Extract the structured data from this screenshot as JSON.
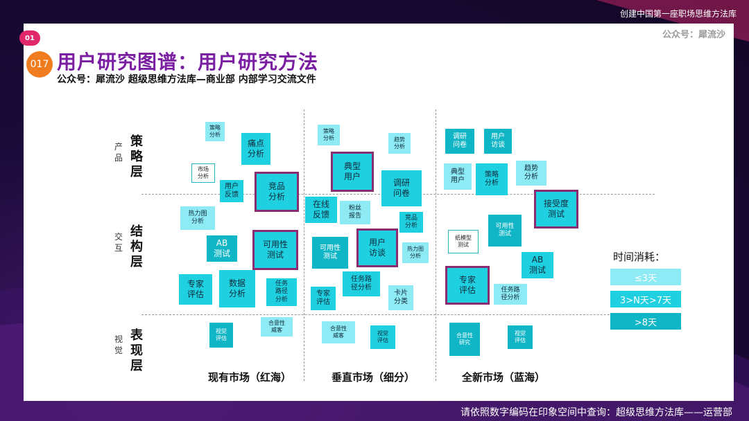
{
  "header": {
    "top_right": "创建中国第一座职场思维方法库",
    "public_account": "公众号：犀流沙"
  },
  "badges": {
    "number": "01",
    "sub": "017"
  },
  "title": "用户研究图谱：用户研究方法",
  "subtitle": "公众号：犀流沙 超级思维方法库—商业部 内部学习交流文件",
  "rows": {
    "strategy": {
      "side": "产品",
      "main": "策略层"
    },
    "structure": {
      "side": "交互",
      "main": "结构层"
    },
    "visual": {
      "side": "视觉",
      "main": "表现层"
    }
  },
  "columns": {
    "existing": "现有市场（红海）",
    "vertical": "垂直市场（细分）",
    "new": "全新市场（蓝海）"
  },
  "methods": {
    "c1_celue": "策略\n分析",
    "c1_tongdian": "痛点\n分析",
    "c1_shichang": "市场\n分析",
    "c1_fankui": "用户\n反馈",
    "c1_jingpin": "竞品\n分析",
    "c1_relitu": "热力图\n分析",
    "c1_ab": "AB\n测试",
    "c1_keyong": "可用性\n测试",
    "c1_zhuanjia": "专家\n评估",
    "c1_shuju": "数据\n分析",
    "c1_renwu": "任务\n路径\n分析",
    "c1_shijue": "视觉\n评估",
    "c1_heyi": "合意性\n威客",
    "c2_celue": "策略\n分析",
    "c2_dianxing": "典型\n用户",
    "c2_qushi": "趋势\n分析",
    "c2_wenjuan": "调研\n问卷",
    "c2_zaixian": "在线\n反馈",
    "c2_fensi": "粉丝\n报告",
    "c2_jingpin": "竞品\n分析",
    "c2_keyong": "可用性\n测试",
    "c2_fangtan": "用户\n访谈",
    "c2_relitu": "热力图\n分析",
    "c2_zhuanjia": "专家\n评估",
    "c2_renwu": "任务路\n径分析",
    "c2_kapian": "卡片\n分类",
    "c2_heyi": "合意性\n威客",
    "c2_shijue": "视觉\n评估",
    "c3_wenjuan": "调研\n问卷",
    "c3_fangtan": "用户\n访谈",
    "c3_dianxing": "典型\n用户",
    "c3_celue": "策略\n分析",
    "c3_qushi": "趋势\n分析",
    "c3_jieshou": "接受度\n测试",
    "c3_zhimo": "纸模型\n测试",
    "c3_keyong": "可用性\n测试",
    "c3_ab": "AB\n测试",
    "c3_zhuanjia": "专家\n评估",
    "c3_renwu": "任务路\n径分析",
    "c3_heyi": "合意性\n研究",
    "c3_shijue": "视觉\n评估"
  },
  "legend": {
    "title": "时间消耗：",
    "short": "≤3天",
    "medium": "3>N天>7天",
    "long": ">8天"
  },
  "footer": {
    "wechat_name": "犀流沙",
    "note": "请依照数字编码在印象空间中查询：超级思维方法库——运营部"
  },
  "colors": {
    "pale": "#8eeaf4",
    "mid": "#1fd0e0",
    "dark": "#11b6c6",
    "highlight": "#8a2c72",
    "title": "#7b1fa2"
  }
}
